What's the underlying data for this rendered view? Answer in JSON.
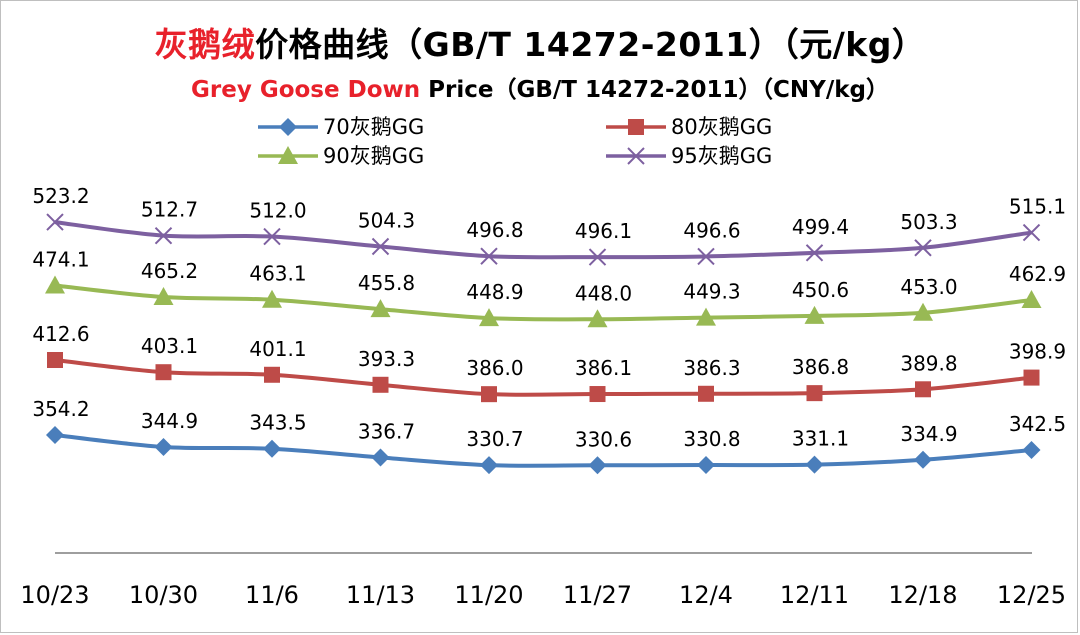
{
  "title": {
    "cn_highlight": "灰鹅绒",
    "cn_rest": "价格曲线（GB/T 14272-2011）（元/kg）",
    "en_highlight": "Grey Goose Down",
    "en_rest": " Price（GB/T 14272-2011）（CNY/kg）"
  },
  "colors": {
    "highlight": "#e8212b",
    "axis": "#7f7f7f"
  },
  "chart_data": {
    "type": "line",
    "categories": [
      "10/23",
      "10/30",
      "11/6",
      "11/13",
      "11/20",
      "11/27",
      "12/4",
      "12/11",
      "12/18",
      "12/25"
    ],
    "grid": false,
    "legend_position": "top",
    "series": [
      {
        "name": "70灰鹅GG",
        "color": "#4a7ebb",
        "marker": "diamond",
        "values": [
          354.2,
          344.9,
          343.5,
          336.7,
          330.7,
          330.6,
          330.8,
          331.1,
          334.9,
          342.5
        ]
      },
      {
        "name": "80灰鹅GG",
        "color": "#be4b48",
        "marker": "square",
        "values": [
          412.6,
          403.1,
          401.1,
          393.3,
          386.0,
          386.1,
          386.3,
          386.8,
          389.8,
          398.9
        ]
      },
      {
        "name": "90灰鹅GG",
        "color": "#98b954",
        "marker": "triangle",
        "values": [
          474.1,
          465.2,
          463.1,
          455.8,
          448.9,
          448.0,
          449.3,
          450.6,
          453.0,
          462.9
        ]
      },
      {
        "name": "95灰鹅GG",
        "color": "#7d60a0",
        "marker": "cross",
        "values": [
          523.2,
          512.7,
          512.0,
          504.3,
          496.8,
          496.1,
          496.6,
          499.4,
          503.3,
          515.1
        ]
      }
    ]
  }
}
